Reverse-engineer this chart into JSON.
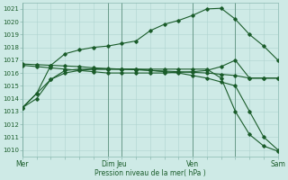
{
  "background_color": "#ceeae6",
  "grid_color": "#aed4d0",
  "line_color": "#1a5c2a",
  "marker_color": "#1a5c2a",
  "xlabel_text": "Pression niveau de la mer( hPa )",
  "ylim": [
    1009.5,
    1021.5
  ],
  "yticks": [
    1010,
    1011,
    1012,
    1013,
    1014,
    1015,
    1016,
    1017,
    1018,
    1019,
    1020,
    1021
  ],
  "xlim": [
    0,
    18
  ],
  "day_positions": [
    0,
    6,
    7,
    12,
    15,
    18
  ],
  "day_labels": [
    "Mer",
    "Dim",
    "Jeu",
    "Ven",
    "",
    "Sam"
  ],
  "vline_positions": [
    0,
    6,
    7,
    12,
    15,
    18
  ],
  "series": [
    [
      1013.3,
      1014.4,
      1016.6,
      1017.5,
      1017.8,
      1018.0,
      1018.1,
      1018.3,
      1018.5,
      1019.3,
      1019.8,
      1020.1,
      1020.5,
      1021.0,
      1021.05,
      1020.2,
      1019.0,
      1018.1,
      1017.0
    ],
    [
      1016.6,
      1016.5,
      1016.4,
      1016.3,
      1016.2,
      1016.1,
      1016.0,
      1016.0,
      1016.0,
      1016.0,
      1016.0,
      1016.05,
      1016.1,
      1016.2,
      1016.5,
      1017.0,
      1015.6,
      1015.6,
      1015.6
    ],
    [
      1016.7,
      1016.65,
      1016.6,
      1016.55,
      1016.5,
      1016.4,
      1016.35,
      1016.3,
      1016.25,
      1016.2,
      1016.15,
      1016.1,
      1016.05,
      1016.0,
      1015.9,
      1015.8,
      1015.6,
      1015.6,
      1015.6
    ],
    [
      1013.3,
      1014.0,
      1015.5,
      1016.2,
      1016.3,
      1016.3,
      1016.3,
      1016.3,
      1016.3,
      1016.3,
      1016.3,
      1016.3,
      1016.3,
      1016.3,
      1015.6,
      1013.0,
      1011.2,
      1010.3,
      1009.9
    ],
    [
      1013.3,
      1014.4,
      1015.5,
      1016.0,
      1016.2,
      1016.3,
      1016.3,
      1016.3,
      1016.3,
      1016.2,
      1016.1,
      1016.0,
      1015.8,
      1015.6,
      1015.3,
      1015.0,
      1013.0,
      1011.0,
      1010.0
    ]
  ]
}
